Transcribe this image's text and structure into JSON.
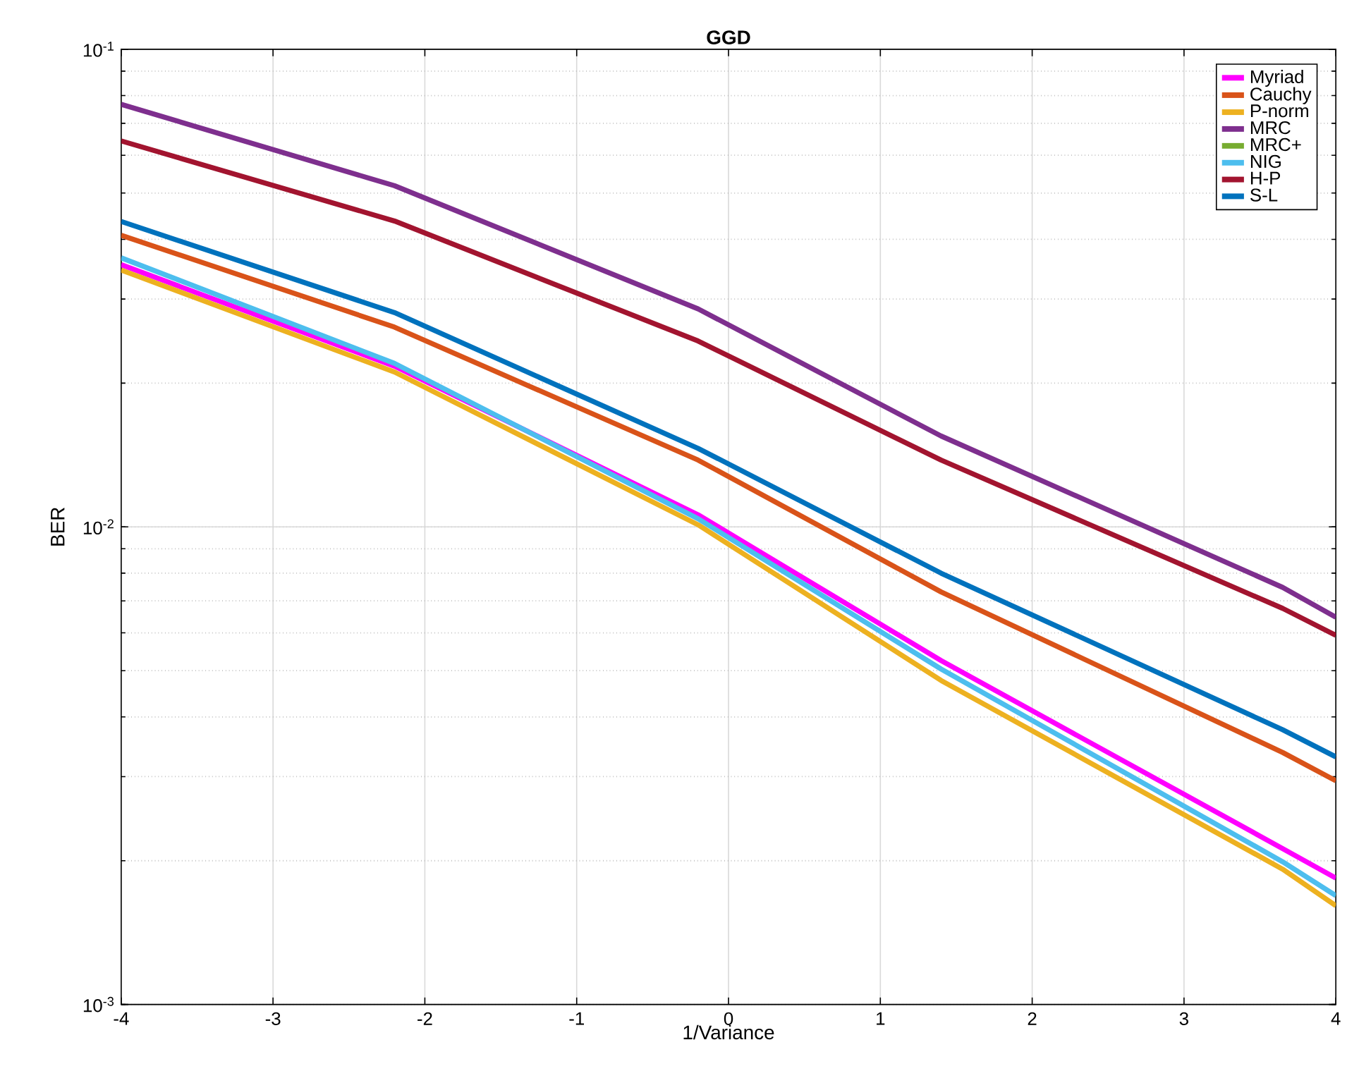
{
  "chart_data": {
    "type": "line",
    "title": "GGD",
    "xlabel": "1/Variance",
    "ylabel": "BER",
    "x": [
      -4,
      -2.2,
      -0.2,
      1.4,
      3.65,
      4
    ],
    "series": [
      {
        "name": "Myriad",
        "color": "#ff00ff",
        "values": [
          0.0354,
          0.0217,
          0.0106,
          0.00525,
          0.00212,
          0.00184
        ]
      },
      {
        "name": "Cauchy",
        "color": "#d95319",
        "values": [
          0.0408,
          0.0262,
          0.0138,
          0.00731,
          0.00337,
          0.00294
        ]
      },
      {
        "name": "P-norm",
        "color": "#edb120",
        "values": [
          0.0345,
          0.0211,
          0.0101,
          0.00477,
          0.00192,
          0.00161
        ]
      },
      {
        "name": "MRC",
        "color": "#7e2f8e",
        "values": [
          0.0767,
          0.0518,
          0.0286,
          0.0155,
          0.00747,
          0.00647
        ]
      },
      {
        "name": "MRC+",
        "color": "#77ac30",
        "values": [
          null,
          null,
          null,
          null,
          null,
          null
        ]
      },
      {
        "name": "NIG",
        "color": "#4dbeee",
        "values": [
          0.0366,
          0.022,
          0.0104,
          0.00504,
          0.00199,
          0.00169
        ]
      },
      {
        "name": "H-P",
        "color": "#a2142f",
        "values": [
          0.0643,
          0.0437,
          0.0245,
          0.0138,
          0.00675,
          0.00593
        ]
      },
      {
        "name": "S-L",
        "color": "#0072bd",
        "values": [
          0.0436,
          0.0281,
          0.0146,
          0.008,
          0.00376,
          0.0033
        ]
      }
    ],
    "xlim": [
      -4,
      4
    ],
    "xticks": [
      -4,
      -3,
      -2,
      -1,
      0,
      1,
      2,
      3,
      4
    ],
    "ylim": [
      0.001,
      0.1
    ],
    "yticks": [
      {
        "value": 0.001,
        "label": "10$^{-3}$"
      },
      {
        "value": 0.01,
        "label": "10$^{-2}$"
      },
      {
        "value": 0.1,
        "label": "10$^{-1}$"
      }
    ],
    "log": true,
    "grid": true,
    "legend": "top right",
    "line_style": "solid",
    "marker": "none"
  }
}
